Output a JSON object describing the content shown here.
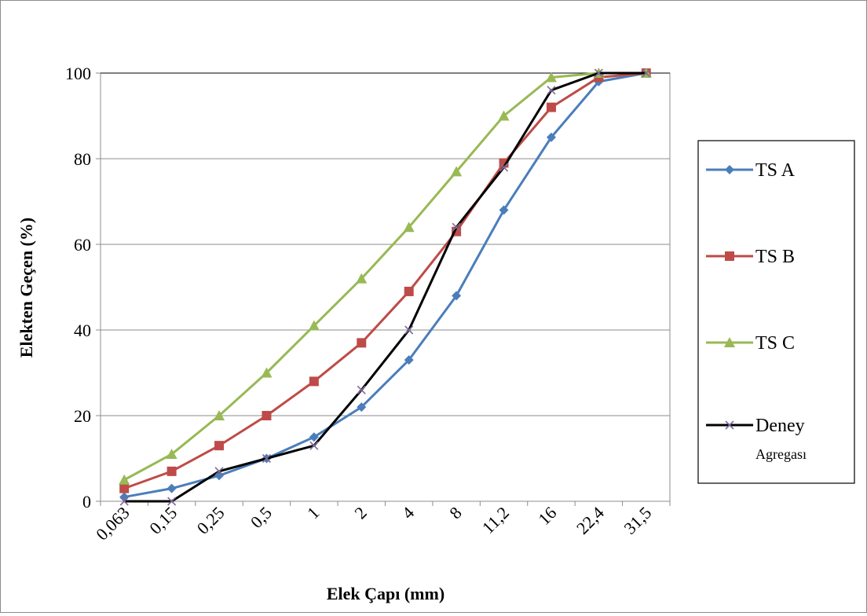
{
  "chart_data": {
    "type": "line",
    "title": "",
    "xlabel": "Elek Çapı (mm)",
    "ylabel": "Elekten   Geçen   (%)",
    "categories": [
      "0,063",
      "0,15",
      "0,25",
      "0,5",
      "1",
      "2",
      "4",
      "8",
      "11,2",
      "16",
      "22,4",
      "31,5"
    ],
    "y_ticks": [
      "0",
      "20",
      "40",
      "60",
      "80",
      "100"
    ],
    "ylim": [
      0,
      100
    ],
    "grid": "horizontal",
    "legend_position": "right",
    "series": [
      {
        "name": "TS A",
        "color": "#4a7ebb",
        "marker": "diamond",
        "values": [
          1,
          3,
          6,
          10,
          15,
          22,
          33,
          48,
          68,
          85,
          98,
          100
        ]
      },
      {
        "name": "TS B",
        "color": "#be4b48",
        "marker": "square",
        "values": [
          3,
          7,
          13,
          20,
          28,
          37,
          49,
          63,
          79,
          92,
          99,
          100
        ]
      },
      {
        "name": "TS C",
        "color": "#98b954",
        "marker": "triangle",
        "values": [
          5,
          11,
          20,
          30,
          41,
          52,
          64,
          77,
          90,
          99,
          100,
          100
        ]
      },
      {
        "name": "Deney",
        "name_line2": "Agregası",
        "color": "#000000",
        "marker_color": "#7e6a9a",
        "marker": "x",
        "values": [
          0,
          0,
          7,
          10,
          13,
          26,
          40,
          64,
          78,
          96,
          100,
          100
        ]
      }
    ]
  }
}
